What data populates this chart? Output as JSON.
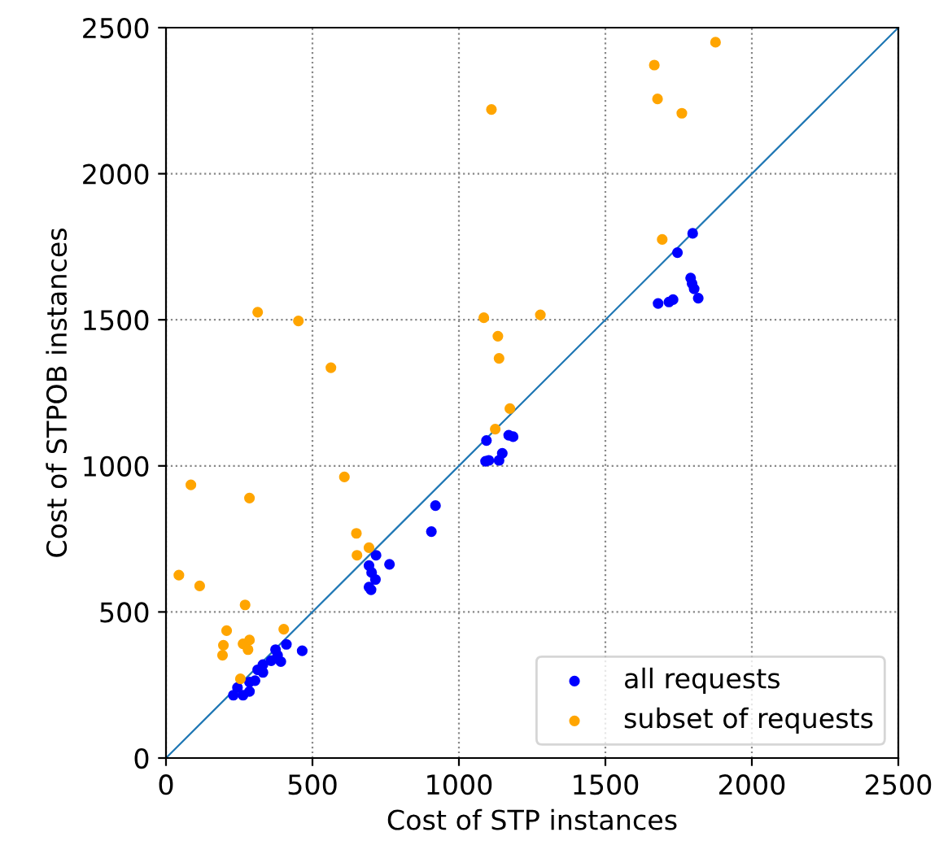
{
  "chart_data": {
    "type": "scatter",
    "xlabel": "Cost of STP instances",
    "ylabel": "Cost of STPOB instances",
    "xlim": [
      0,
      2500
    ],
    "ylim": [
      0,
      2500
    ],
    "xticks": [
      0,
      500,
      1000,
      1500,
      2000,
      2500
    ],
    "yticks": [
      0,
      500,
      1000,
      1500,
      2000,
      2500
    ],
    "grid": true,
    "legend": "bottom right",
    "marker": "circle",
    "series": [
      {
        "name": "all requests",
        "color": "#0000ff",
        "x": [
          230,
          244,
          263,
          285,
          285,
          304,
          313,
          331,
          331,
          359,
          374,
          381,
          392,
          411,
          465,
          717,
          693,
          702,
          715,
          693,
          700,
          763,
          1094,
          1091,
          920,
          906,
          1170,
          1185,
          1148,
          1137,
          1102,
          1798,
          1746,
          1791,
          1796,
          1803,
          1817,
          1680,
          1717,
          1731
        ],
        "values": [
          215,
          241,
          215,
          228,
          260,
          265,
          302,
          320,
          293,
          333,
          371,
          352,
          330,
          389,
          367,
          694,
          659,
          635,
          611,
          585,
          576,
          663,
          1087,
          1016,
          864,
          775,
          1105,
          1100,
          1043,
          1019,
          1019,
          1796,
          1730,
          1643,
          1624,
          1606,
          1574,
          1556,
          1561,
          1569
        ]
      },
      {
        "name": "subset of requests",
        "color": "#ffa500",
        "x": [
          44,
          115,
          270,
          402,
          207,
          196,
          193,
          263,
          285,
          280,
          254,
          652,
          693,
          650,
          313,
          452,
          563,
          85,
          285,
          609,
          1085,
          1137,
          1174,
          1124,
          1133,
          1111,
          1278,
          1876,
          1667,
          1678,
          1761,
          1694
        ],
        "values": [
          626,
          589,
          524,
          441,
          436,
          386,
          352,
          391,
          404,
          371,
          271,
          694,
          720,
          769,
          1526,
          1496,
          1336,
          935,
          890,
          962,
          1507,
          1368,
          1196,
          1126,
          1444,
          2220,
          1517,
          2450,
          2372,
          2256,
          2207,
          1775
        ]
      },
      {
        "type": "line",
        "color": "#1f77b4",
        "marker": "none",
        "x": [
          0,
          2500
        ],
        "values": [
          0,
          2500
        ]
      }
    ]
  }
}
